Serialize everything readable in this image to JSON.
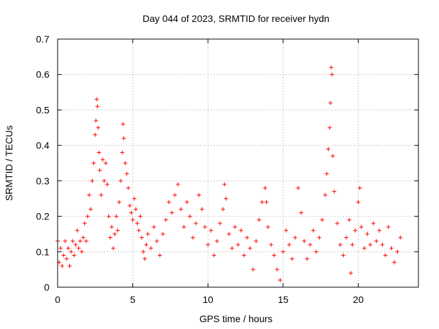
{
  "chart_data": {
    "type": "scatter",
    "title": "Day 044 of 2023, SRMTID for receiver hydn",
    "xlabel": "GPS time / hours",
    "ylabel": "SRMTID / TECUs",
    "xlim": [
      0,
      24
    ],
    "ylim": [
      0,
      0.7
    ],
    "xticks": [
      {
        "value": 0,
        "label": "0"
      },
      {
        "value": 5,
        "label": "5"
      },
      {
        "value": 10,
        "label": "10"
      },
      {
        "value": 15,
        "label": "15"
      },
      {
        "value": 20,
        "label": "20"
      }
    ],
    "yticks": [
      {
        "value": 0,
        "label": "0"
      },
      {
        "value": 0.1,
        "label": "0.1"
      },
      {
        "value": 0.2,
        "label": "0.2"
      },
      {
        "value": 0.3,
        "label": "0.3"
      },
      {
        "value": 0.4,
        "label": "0.4"
      },
      {
        "value": 0.5,
        "label": "0.5"
      },
      {
        "value": 0.6,
        "label": "0.6"
      },
      {
        "value": 0.7,
        "label": "0.7"
      }
    ],
    "grid": true,
    "marker": "+",
    "color": "#ff0000",
    "series": [
      {
        "name": "SRMTID",
        "points": [
          [
            0.0,
            0.13
          ],
          [
            0.1,
            0.07
          ],
          [
            0.2,
            0.11
          ],
          [
            0.3,
            0.06
          ],
          [
            0.4,
            0.09
          ],
          [
            0.5,
            0.13
          ],
          [
            0.6,
            0.08
          ],
          [
            0.7,
            0.11
          ],
          [
            0.8,
            0.06
          ],
          [
            0.9,
            0.1
          ],
          [
            1.0,
            0.13
          ],
          [
            1.1,
            0.09
          ],
          [
            1.2,
            0.12
          ],
          [
            1.3,
            0.16
          ],
          [
            1.4,
            0.11
          ],
          [
            1.5,
            0.13
          ],
          [
            1.6,
            0.1
          ],
          [
            1.7,
            0.14
          ],
          [
            1.8,
            0.18
          ],
          [
            1.9,
            0.13
          ],
          [
            2.0,
            0.2
          ],
          [
            2.1,
            0.26
          ],
          [
            2.2,
            0.22
          ],
          [
            2.3,
            0.3
          ],
          [
            2.4,
            0.35
          ],
          [
            2.5,
            0.43
          ],
          [
            2.55,
            0.47
          ],
          [
            2.6,
            0.53
          ],
          [
            2.65,
            0.51
          ],
          [
            2.7,
            0.45
          ],
          [
            2.75,
            0.38
          ],
          [
            2.8,
            0.33
          ],
          [
            2.9,
            0.26
          ],
          [
            3.0,
            0.36
          ],
          [
            3.1,
            0.3
          ],
          [
            3.2,
            0.35
          ],
          [
            3.3,
            0.29
          ],
          [
            3.4,
            0.2
          ],
          [
            3.5,
            0.14
          ],
          [
            3.6,
            0.17
          ],
          [
            3.7,
            0.11
          ],
          [
            3.8,
            0.15
          ],
          [
            3.9,
            0.2
          ],
          [
            4.0,
            0.16
          ],
          [
            4.1,
            0.24
          ],
          [
            4.2,
            0.3
          ],
          [
            4.3,
            0.38
          ],
          [
            4.35,
            0.46
          ],
          [
            4.4,
            0.42
          ],
          [
            4.5,
            0.35
          ],
          [
            4.6,
            0.32
          ],
          [
            4.7,
            0.28
          ],
          [
            4.8,
            0.23
          ],
          [
            4.9,
            0.21
          ],
          [
            5.0,
            0.19
          ],
          [
            5.1,
            0.25
          ],
          [
            5.2,
            0.22
          ],
          [
            5.3,
            0.18
          ],
          [
            5.4,
            0.16
          ],
          [
            5.5,
            0.2
          ],
          [
            5.6,
            0.14
          ],
          [
            5.7,
            0.1
          ],
          [
            5.8,
            0.08
          ],
          [
            5.9,
            0.12
          ],
          [
            6.0,
            0.15
          ],
          [
            6.2,
            0.11
          ],
          [
            6.4,
            0.17
          ],
          [
            6.6,
            0.13
          ],
          [
            6.8,
            0.09
          ],
          [
            7.0,
            0.15
          ],
          [
            7.2,
            0.19
          ],
          [
            7.4,
            0.24
          ],
          [
            7.6,
            0.21
          ],
          [
            7.8,
            0.26
          ],
          [
            8.0,
            0.29
          ],
          [
            8.2,
            0.22
          ],
          [
            8.4,
            0.17
          ],
          [
            8.6,
            0.24
          ],
          [
            8.8,
            0.2
          ],
          [
            9.0,
            0.14
          ],
          [
            9.2,
            0.18
          ],
          [
            9.4,
            0.26
          ],
          [
            9.6,
            0.22
          ],
          [
            9.8,
            0.17
          ],
          [
            10.0,
            0.12
          ],
          [
            10.2,
            0.16
          ],
          [
            10.4,
            0.09
          ],
          [
            10.6,
            0.13
          ],
          [
            10.8,
            0.18
          ],
          [
            11.0,
            0.22
          ],
          [
            11.1,
            0.29
          ],
          [
            11.2,
            0.25
          ],
          [
            11.4,
            0.15
          ],
          [
            11.6,
            0.11
          ],
          [
            11.8,
            0.17
          ],
          [
            12.0,
            0.12
          ],
          [
            12.2,
            0.16
          ],
          [
            12.4,
            0.09
          ],
          [
            12.6,
            0.14
          ],
          [
            12.8,
            0.11
          ],
          [
            13.0,
            0.05
          ],
          [
            13.2,
            0.13
          ],
          [
            13.4,
            0.19
          ],
          [
            13.6,
            0.24
          ],
          [
            13.8,
            0.28
          ],
          [
            13.9,
            0.24
          ],
          [
            14.0,
            0.17
          ],
          [
            14.2,
            0.12
          ],
          [
            14.4,
            0.09
          ],
          [
            14.6,
            0.05
          ],
          [
            14.8,
            0.02
          ],
          [
            15.0,
            0.1
          ],
          [
            15.2,
            0.16
          ],
          [
            15.4,
            0.12
          ],
          [
            15.6,
            0.08
          ],
          [
            15.8,
            0.14
          ],
          [
            16.0,
            0.28
          ],
          [
            16.2,
            0.21
          ],
          [
            16.4,
            0.13
          ],
          [
            16.6,
            0.08
          ],
          [
            16.8,
            0.12
          ],
          [
            17.0,
            0.16
          ],
          [
            17.2,
            0.1
          ],
          [
            17.4,
            0.14
          ],
          [
            17.6,
            0.19
          ],
          [
            17.8,
            0.26
          ],
          [
            17.9,
            0.32
          ],
          [
            18.0,
            0.39
          ],
          [
            18.1,
            0.45
          ],
          [
            18.15,
            0.52
          ],
          [
            18.2,
            0.62
          ],
          [
            18.25,
            0.6
          ],
          [
            18.3,
            0.37
          ],
          [
            18.4,
            0.27
          ],
          [
            18.6,
            0.18
          ],
          [
            18.8,
            0.12
          ],
          [
            19.0,
            0.09
          ],
          [
            19.2,
            0.14
          ],
          [
            19.4,
            0.19
          ],
          [
            19.5,
            0.04
          ],
          [
            19.6,
            0.12
          ],
          [
            19.8,
            0.16
          ],
          [
            20.0,
            0.24
          ],
          [
            20.1,
            0.28
          ],
          [
            20.2,
            0.17
          ],
          [
            20.4,
            0.11
          ],
          [
            20.6,
            0.15
          ],
          [
            20.8,
            0.12
          ],
          [
            21.0,
            0.18
          ],
          [
            21.2,
            0.13
          ],
          [
            21.4,
            0.16
          ],
          [
            21.6,
            0.12
          ],
          [
            21.8,
            0.09
          ],
          [
            22.0,
            0.17
          ],
          [
            22.2,
            0.11
          ],
          [
            22.4,
            0.07
          ],
          [
            22.6,
            0.1
          ],
          [
            22.8,
            0.14
          ]
        ]
      }
    ]
  }
}
